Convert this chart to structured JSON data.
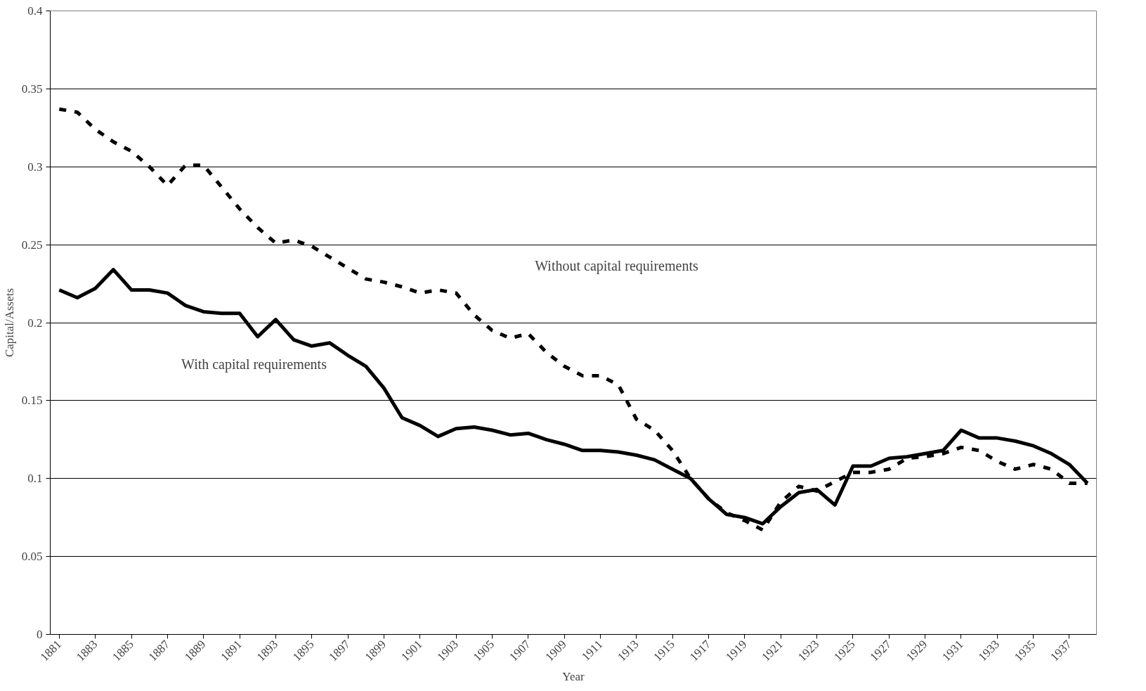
{
  "chart_data": {
    "type": "line",
    "xlabel": "Year",
    "ylabel": "Capital/Assets",
    "x": [
      1881,
      1882,
      1883,
      1884,
      1885,
      1886,
      1887,
      1888,
      1889,
      1890,
      1891,
      1892,
      1893,
      1894,
      1895,
      1896,
      1897,
      1898,
      1899,
      1900,
      1901,
      1902,
      1903,
      1904,
      1905,
      1906,
      1907,
      1908,
      1909,
      1910,
      1911,
      1912,
      1913,
      1914,
      1915,
      1916,
      1917,
      1918,
      1919,
      1920,
      1921,
      1922,
      1923,
      1924,
      1925,
      1926,
      1927,
      1928,
      1929,
      1930,
      1931,
      1932,
      1933,
      1934,
      1935,
      1936,
      1937,
      1938
    ],
    "series": [
      {
        "color": "#000000",
        "line_style": "solid",
        "values": [
          0.221,
          0.216,
          0.222,
          0.234,
          0.221,
          0.221,
          0.219,
          0.211,
          0.207,
          0.206,
          0.206,
          0.191,
          0.202,
          0.189,
          0.185,
          0.187,
          0.179,
          0.172,
          0.158,
          0.139,
          0.134,
          0.127,
          0.132,
          0.133,
          0.131,
          0.128,
          0.129,
          0.125,
          0.122,
          0.118,
          0.118,
          0.117,
          0.115,
          0.112,
          0.106,
          0.1,
          0.087,
          0.077,
          0.075,
          0.071,
          0.082,
          0.091,
          0.093,
          0.083,
          0.108,
          0.108,
          0.113,
          0.114,
          0.116,
          0.118,
          0.131,
          0.126,
          0.126,
          0.124,
          0.121,
          0.116,
          0.109,
          0.097
        ]
      },
      {
        "color": "#000000",
        "line_style": "dashed",
        "values": [
          0.337,
          0.335,
          0.324,
          0.316,
          0.31,
          0.3,
          0.288,
          0.301,
          0.301,
          0.287,
          0.273,
          0.261,
          0.251,
          0.253,
          0.249,
          0.242,
          0.235,
          0.228,
          0.226,
          0.223,
          0.219,
          0.221,
          0.219,
          0.205,
          0.195,
          0.19,
          0.193,
          0.181,
          0.172,
          0.166,
          0.166,
          0.16,
          0.138,
          0.131,
          0.118,
          0.1,
          0.087,
          0.078,
          0.073,
          0.067,
          0.085,
          0.095,
          0.092,
          0.098,
          0.104,
          0.104,
          0.106,
          0.113,
          0.114,
          0.116,
          0.12,
          0.118,
          0.111,
          0.106,
          0.109,
          0.106,
          0.097,
          0.097
        ]
      }
    ],
    "xlim": [
      1880.5,
      1938.5
    ],
    "xticks": [
      1881,
      1883,
      1885,
      1887,
      1889,
      1891,
      1893,
      1895,
      1897,
      1899,
      1901,
      1903,
      1905,
      1907,
      1909,
      1911,
      1913,
      1915,
      1917,
      1919,
      1921,
      1923,
      1925,
      1927,
      1929,
      1931,
      1933,
      1935,
      1937
    ],
    "ylim": [
      0,
      0.4
    ],
    "yticks": [
      0,
      0.05,
      0.1,
      0.15,
      0.2,
      0.25,
      0.3,
      0.35,
      0.4
    ],
    "grid": "y",
    "annotations": [
      "Without capital requirements",
      "With capital requirements"
    ]
  }
}
